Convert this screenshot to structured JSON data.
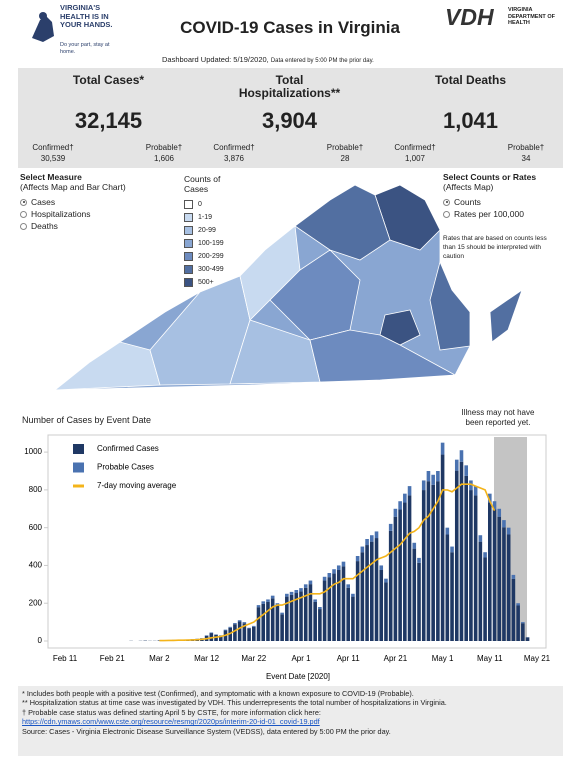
{
  "header": {
    "logo_text": "VIRGINIA'S HEALTH IS IN YOUR HANDS.",
    "logo_tagline": "Do your part, stay at home.",
    "title": "COVID-19 Cases in Virginia",
    "agency_abbr": "VDH",
    "agency_name": "VIRGINIA DEPARTMENT OF HEALTH",
    "updated": "Dashboard Updated: 5/19/2020,",
    "updated_note": "Data entered by 5:00 PM the prior day."
  },
  "stats": [
    {
      "label": "Total Cases*",
      "value": "32,145",
      "parts": [
        {
          "label": "Confirmed†",
          "value": "30,539"
        },
        {
          "label": "Probable†",
          "value": "1,606"
        }
      ]
    },
    {
      "label": "Total Hospitalizations**",
      "value": "3,904",
      "parts": [
        {
          "label": "Confirmed†",
          "value": "3,876"
        },
        {
          "label": "Probable†",
          "value": "28"
        }
      ]
    },
    {
      "label": "Total Deaths",
      "value": "1,041",
      "parts": [
        {
          "label": "Confirmed†",
          "value": "1,007"
        },
        {
          "label": "Probable†",
          "value": "34"
        }
      ]
    }
  ],
  "measure": {
    "title": "Select Measure",
    "subtitle": "(Affects Map and Bar Chart)",
    "options": [
      "Cases",
      "Hospitalizations",
      "Deaths"
    ],
    "selected": 0
  },
  "map_legend": {
    "title": "Counts of Cases",
    "items": [
      {
        "label": "0",
        "color": "#ffffff"
      },
      {
        "label": "1-19",
        "color": "#c8daf0"
      },
      {
        "label": "20-99",
        "color": "#a7c0e2"
      },
      {
        "label": "100-199",
        "color": "#89a6d2"
      },
      {
        "label": "200-299",
        "color": "#6d8bbf"
      },
      {
        "label": "300-499",
        "color": "#526fa1"
      },
      {
        "label": "500+",
        "color": "#3b5382"
      }
    ]
  },
  "rate_select": {
    "title": "Select Counts or Rates",
    "subtitle": "(Affects Map)",
    "options": [
      "Counts",
      "Rates per 100,000"
    ],
    "selected": 0,
    "note": "Rates that are based on counts less than 15 should be interpreted with caution"
  },
  "chart_data": {
    "type": "bar",
    "stacked": true,
    "title": "Number of Cases by Event Date",
    "xlabel": "Event Date [2020]",
    "annotation": "Illness may not have been reported yet.",
    "categories": [
      "Feb 11",
      null,
      null,
      null,
      null,
      null,
      null,
      null,
      null,
      null,
      "Feb 21",
      null,
      null,
      null,
      null,
      null,
      null,
      null,
      null,
      null,
      "Mar 2",
      null,
      null,
      null,
      null,
      null,
      null,
      null,
      null,
      null,
      "Mar 12",
      null,
      null,
      null,
      null,
      null,
      null,
      null,
      null,
      null,
      "Mar 22",
      null,
      null,
      null,
      null,
      null,
      null,
      null,
      null,
      null,
      "Apr 1",
      null,
      null,
      null,
      null,
      null,
      null,
      null,
      null,
      null,
      "Apr 11",
      null,
      null,
      null,
      null,
      null,
      null,
      null,
      null,
      null,
      "Apr 21",
      null,
      null,
      null,
      null,
      null,
      null,
      null,
      null,
      null,
      "May 1",
      null,
      null,
      null,
      null,
      null,
      null,
      null,
      null,
      null,
      "May 11",
      null,
      null,
      null,
      null,
      null,
      null,
      null,
      null,
      null,
      "May 21"
    ],
    "series": [
      {
        "name": "Confirmed Cases",
        "color": "#1f3864",
        "values": [
          0,
          0,
          0,
          0,
          0,
          0,
          0,
          0,
          0,
          0,
          0,
          0,
          0,
          0,
          1,
          0,
          1,
          2,
          1,
          1,
          3,
          4,
          5,
          6,
          4,
          3,
          8,
          9,
          11,
          14,
          28,
          42,
          33,
          28,
          56,
          70,
          89,
          103,
          94,
          66,
          75,
          179,
          197,
          207,
          226,
          188,
          141,
          235,
          244,
          254,
          263,
          282,
          301,
          207,
          169,
          320,
          338,
          357,
          376,
          395,
          282,
          235,
          423,
          470,
          508,
          526,
          545,
          376,
          310,
          583,
          658,
          696,
          733,
          771,
          489,
          414,
          799,
          846,
          827,
          846,
          987,
          564,
          470,
          902,
          949,
          874,
          799,
          771,
          526,
          442,
          733,
          696,
          658,
          602,
          564,
          329,
          188,
          94,
          19,
          null,
          null
        ]
      },
      {
        "name": "Probable Cases",
        "color": "#4a72b0",
        "values": [
          0,
          0,
          0,
          0,
          0,
          0,
          0,
          0,
          0,
          0,
          0,
          0,
          0,
          0,
          0,
          0,
          0,
          0,
          0,
          0,
          0,
          0,
          0,
          0,
          0,
          0,
          0,
          1,
          1,
          1,
          2,
          3,
          2,
          2,
          4,
          5,
          6,
          7,
          6,
          4,
          5,
          11,
          13,
          13,
          14,
          12,
          9,
          15,
          16,
          16,
          17,
          18,
          19,
          13,
          11,
          20,
          22,
          23,
          24,
          25,
          18,
          15,
          27,
          30,
          32,
          34,
          35,
          24,
          20,
          37,
          42,
          44,
          47,
          49,
          31,
          26,
          51,
          54,
          53,
          54,
          63,
          36,
          30,
          58,
          61,
          56,
          51,
          49,
          34,
          28,
          47,
          44,
          42,
          38,
          36,
          21,
          12,
          6,
          1,
          null,
          null
        ]
      },
      {
        "name": "7-day moving average",
        "color": "#f4b41a",
        "type": "line",
        "values": [
          null,
          null,
          null,
          null,
          null,
          null,
          null,
          null,
          null,
          null,
          null,
          null,
          null,
          null,
          null,
          null,
          null,
          null,
          null,
          null,
          2,
          2,
          3,
          3,
          4,
          4,
          5,
          6,
          7,
          9,
          12,
          17,
          20,
          24,
          30,
          40,
          54,
          68,
          80,
          90,
          100,
          120,
          140,
          160,
          180,
          190,
          190,
          200,
          210,
          220,
          230,
          240,
          250,
          250,
          250,
          260,
          280,
          300,
          310,
          330,
          330,
          330,
          350,
          370,
          390,
          410,
          430,
          440,
          450,
          470,
          490,
          510,
          540,
          570,
          580,
          600,
          640,
          660,
          700,
          740,
          800,
          800,
          790,
          810,
          830,
          830,
          830,
          820,
          810,
          800,
          740,
          690,
          null,
          null,
          null,
          null,
          null,
          null,
          null,
          null,
          null
        ]
      }
    ],
    "ylim": [
      0,
      1080
    ],
    "yticks": [
      0,
      200,
      400,
      600,
      800,
      1000
    ]
  },
  "footnotes": {
    "lines": [
      "* Includes both people with a positive test (Confirmed), and symptomatic with a known exposure to COVID-19 (Probable).",
      "** Hospitalization status at time case was investigated by VDH. This underrepresents the total number of hospitalizations in Virginia.",
      "† Probable case status was defined starting April 5 by CSTE, for more information click here:"
    ],
    "link": "https://cdn.ymaws.com/www.cste.org/resource/resmgr/2020ps/interim-20-id-01_covid-19.pdf",
    "source": "Source:  Cases - Virginia Electronic Disease Surveillance System (VEDSS), data entered by 5:00 PM the prior day."
  }
}
